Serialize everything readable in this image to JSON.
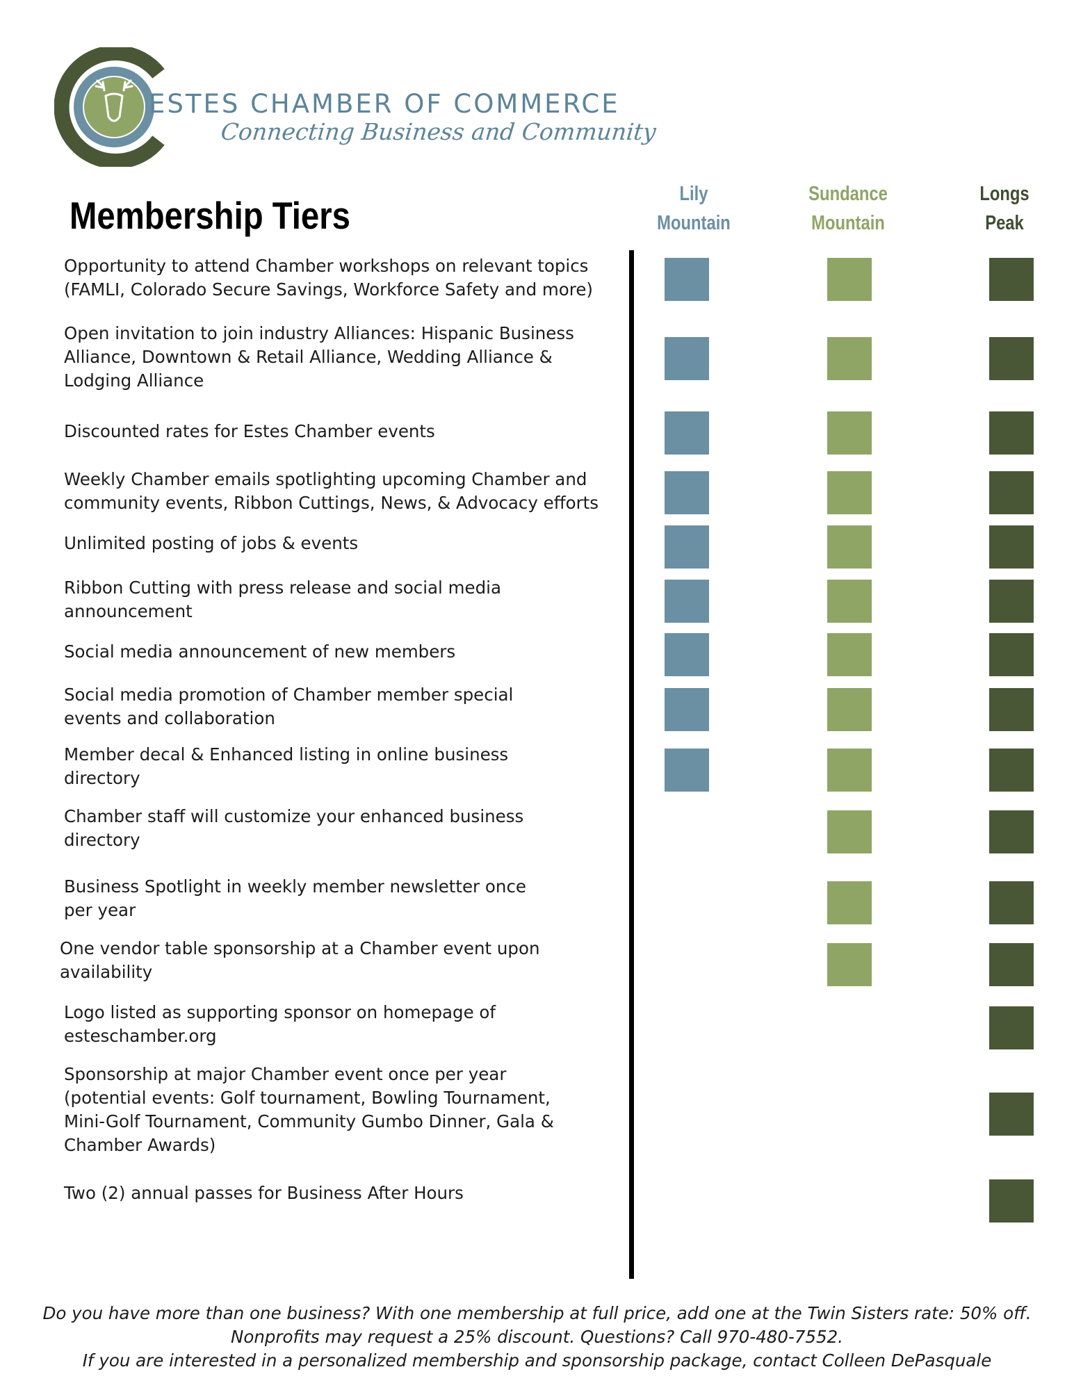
{
  "header": {
    "org_name": "ESTES CHAMBER OF COMMERCE",
    "tagline": "Connecting Business and Community",
    "logo_icon": "elk-head-logo-icon",
    "colors": {
      "blue": "#6b8fa3",
      "green": "#8fa566",
      "dark_green": "#4a5737"
    }
  },
  "section_title": "Membership Tiers",
  "tiers": [
    {
      "line1": "Lily",
      "line2": "Mountain"
    },
    {
      "line1": "Sundance",
      "line2": "Mountain"
    },
    {
      "line1": "Longs",
      "line2": "Peak"
    }
  ],
  "benefits": [
    {
      "text": "Opportunity to attend Chamber workshops on relevant topics\n(FAMLI, Colorado Secure Savings, Workforce Safety and more)",
      "lily": true,
      "sundance": true,
      "longs": true
    },
    {
      "text": "Open invitation to join industry Alliances: Hispanic Business\nAlliance, Downtown & Retail Alliance, Wedding Alliance &\nLodging Alliance",
      "lily": true,
      "sundance": true,
      "longs": true
    },
    {
      "text": "Discounted rates for Estes Chamber events",
      "lily": true,
      "sundance": true,
      "longs": true
    },
    {
      "text": "Weekly Chamber emails spotlighting upcoming Chamber and\ncommunity events, Ribbon Cuttings, News, & Advocacy efforts",
      "lily": true,
      "sundance": true,
      "longs": true
    },
    {
      "text": "Unlimited posting of jobs & events",
      "lily": true,
      "sundance": true,
      "longs": true
    },
    {
      "text": "Ribbon Cutting with press release and social media\nannouncement",
      "lily": true,
      "sundance": true,
      "longs": true
    },
    {
      "text": "Social media announcement of new members",
      "lily": true,
      "sundance": true,
      "longs": true
    },
    {
      "text": "Social media promotion of Chamber member special\nevents and collaboration",
      "lily": true,
      "sundance": true,
      "longs": true
    },
    {
      "text": "Member decal & Enhanced listing in online business\ndirectory",
      "lily": true,
      "sundance": true,
      "longs": true
    },
    {
      "text": "Chamber staff will customize your enhanced business\ndirectory",
      "lily": false,
      "sundance": true,
      "longs": true
    },
    {
      "text": "Business Spotlight in weekly member newsletter once\nper year",
      "lily": false,
      "sundance": true,
      "longs": true
    },
    {
      "text": "One vendor table sponsorship at a Chamber event upon\navailability",
      "lily": false,
      "sundance": true,
      "longs": true
    },
    {
      "text": "Logo listed as supporting sponsor on homepage of\nesteschamber.org",
      "lily": false,
      "sundance": false,
      "longs": true
    },
    {
      "text": "Sponsorship at major Chamber event once per year\n(potential events: Golf  tournament, Bowling Tournament,\nMini-Golf Tournament, Community Gumbo Dinner, Gala &\nChamber Awards)",
      "lily": false,
      "sundance": false,
      "longs": true
    },
    {
      "text": "Two (2) annual passes for Business After Hours",
      "lily": false,
      "sundance": false,
      "longs": true
    }
  ],
  "footer": {
    "line1": "Do you have more than one business? With one membership at full price, add one at the Twin Sisters rate: 50% off.",
    "line2": "Nonprofits may request a 25% discount. Questions? Call 970-480-7552.",
    "line3": "If you are interested in a personalized membership and sponsorship package, contact Colleen DePasquale"
  }
}
